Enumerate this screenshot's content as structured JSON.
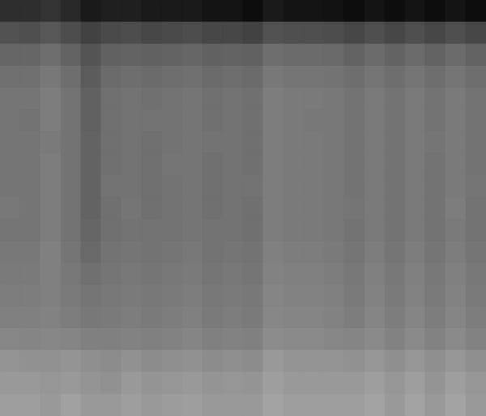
{
  "chart_data": {
    "type": "heatmap",
    "tick_labels": false,
    "zlim": [
      0,
      1
    ],
    "cells": [
      [
        0.18,
        0.18,
        0.2,
        0.16,
        0.1,
        0.12,
        0.12,
        0.1,
        0.1,
        0.1,
        0.08,
        0.08,
        0.05,
        0.1,
        0.08,
        0.08,
        0.07,
        0.05,
        0.08,
        0.05,
        0.08,
        0.05,
        0.08,
        0.05
      ],
      [
        0.32,
        0.31,
        0.34,
        0.3,
        0.26,
        0.29,
        0.3,
        0.28,
        0.29,
        0.3,
        0.28,
        0.28,
        0.26,
        0.32,
        0.31,
        0.31,
        0.3,
        0.28,
        0.31,
        0.28,
        0.31,
        0.28,
        0.31,
        0.28
      ],
      [
        0.4,
        0.4,
        0.43,
        0.39,
        0.33,
        0.38,
        0.39,
        0.38,
        0.39,
        0.4,
        0.38,
        0.39,
        0.38,
        0.43,
        0.42,
        0.42,
        0.41,
        0.39,
        0.42,
        0.39,
        0.42,
        0.39,
        0.42,
        0.39
      ],
      [
        0.44,
        0.44,
        0.47,
        0.43,
        0.36,
        0.42,
        0.43,
        0.42,
        0.43,
        0.44,
        0.42,
        0.43,
        0.42,
        0.47,
        0.46,
        0.46,
        0.45,
        0.43,
        0.46,
        0.43,
        0.46,
        0.43,
        0.46,
        0.43
      ],
      [
        0.46,
        0.46,
        0.49,
        0.45,
        0.38,
        0.44,
        0.45,
        0.44,
        0.45,
        0.46,
        0.44,
        0.45,
        0.44,
        0.49,
        0.48,
        0.48,
        0.47,
        0.45,
        0.48,
        0.45,
        0.48,
        0.45,
        0.48,
        0.45
      ],
      [
        0.46,
        0.45,
        0.49,
        0.45,
        0.38,
        0.44,
        0.45,
        0.45,
        0.45,
        0.46,
        0.44,
        0.45,
        0.44,
        0.49,
        0.48,
        0.47,
        0.47,
        0.45,
        0.48,
        0.45,
        0.48,
        0.45,
        0.48,
        0.45
      ],
      [
        0.46,
        0.46,
        0.48,
        0.45,
        0.39,
        0.44,
        0.45,
        0.44,
        0.45,
        0.46,
        0.45,
        0.45,
        0.44,
        0.49,
        0.48,
        0.48,
        0.47,
        0.45,
        0.48,
        0.45,
        0.48,
        0.46,
        0.48,
        0.45
      ],
      [
        0.46,
        0.46,
        0.49,
        0.45,
        0.39,
        0.44,
        0.45,
        0.44,
        0.46,
        0.46,
        0.44,
        0.45,
        0.44,
        0.49,
        0.48,
        0.48,
        0.47,
        0.45,
        0.48,
        0.45,
        0.48,
        0.45,
        0.48,
        0.45
      ],
      [
        0.46,
        0.46,
        0.49,
        0.45,
        0.39,
        0.45,
        0.45,
        0.44,
        0.45,
        0.46,
        0.44,
        0.45,
        0.45,
        0.49,
        0.48,
        0.48,
        0.47,
        0.45,
        0.48,
        0.45,
        0.48,
        0.45,
        0.48,
        0.46
      ],
      [
        0.47,
        0.46,
        0.49,
        0.45,
        0.39,
        0.44,
        0.46,
        0.44,
        0.45,
        0.46,
        0.44,
        0.45,
        0.44,
        0.49,
        0.48,
        0.48,
        0.47,
        0.46,
        0.48,
        0.45,
        0.48,
        0.45,
        0.49,
        0.45
      ],
      [
        0.46,
        0.46,
        0.49,
        0.45,
        0.4,
        0.44,
        0.45,
        0.45,
        0.45,
        0.46,
        0.45,
        0.45,
        0.44,
        0.49,
        0.48,
        0.48,
        0.47,
        0.45,
        0.48,
        0.45,
        0.48,
        0.45,
        0.48,
        0.45
      ],
      [
        0.47,
        0.47,
        0.5,
        0.46,
        0.41,
        0.45,
        0.46,
        0.45,
        0.46,
        0.47,
        0.45,
        0.46,
        0.45,
        0.5,
        0.49,
        0.49,
        0.48,
        0.46,
        0.49,
        0.46,
        0.49,
        0.46,
        0.49,
        0.46
      ],
      [
        0.48,
        0.48,
        0.5,
        0.47,
        0.44,
        0.46,
        0.47,
        0.46,
        0.47,
        0.48,
        0.46,
        0.47,
        0.46,
        0.51,
        0.5,
        0.5,
        0.49,
        0.47,
        0.5,
        0.47,
        0.5,
        0.47,
        0.5,
        0.47
      ],
      [
        0.49,
        0.49,
        0.5,
        0.48,
        0.46,
        0.47,
        0.48,
        0.47,
        0.48,
        0.49,
        0.47,
        0.48,
        0.47,
        0.52,
        0.51,
        0.51,
        0.5,
        0.48,
        0.51,
        0.48,
        0.51,
        0.48,
        0.51,
        0.48
      ],
      [
        0.5,
        0.5,
        0.51,
        0.49,
        0.47,
        0.48,
        0.49,
        0.48,
        0.49,
        0.5,
        0.48,
        0.49,
        0.48,
        0.53,
        0.52,
        0.52,
        0.51,
        0.49,
        0.52,
        0.49,
        0.52,
        0.49,
        0.52,
        0.49
      ],
      [
        0.53,
        0.52,
        0.53,
        0.52,
        0.5,
        0.5,
        0.51,
        0.5,
        0.51,
        0.52,
        0.5,
        0.51,
        0.5,
        0.55,
        0.54,
        0.54,
        0.53,
        0.52,
        0.54,
        0.51,
        0.54,
        0.51,
        0.54,
        0.51
      ],
      [
        0.58,
        0.57,
        0.57,
        0.58,
        0.56,
        0.55,
        0.57,
        0.55,
        0.56,
        0.57,
        0.55,
        0.56,
        0.55,
        0.6,
        0.58,
        0.58,
        0.58,
        0.57,
        0.59,
        0.56,
        0.59,
        0.56,
        0.59,
        0.56
      ],
      [
        0.6,
        0.6,
        0.59,
        0.6,
        0.58,
        0.57,
        0.6,
        0.58,
        0.59,
        0.6,
        0.58,
        0.59,
        0.58,
        0.62,
        0.6,
        0.6,
        0.6,
        0.6,
        0.62,
        0.59,
        0.62,
        0.58,
        0.62,
        0.59
      ],
      [
        0.62,
        0.62,
        0.6,
        0.63,
        0.6,
        0.6,
        0.62,
        0.6,
        0.61,
        0.62,
        0.6,
        0.6,
        0.6,
        0.64,
        0.62,
        0.62,
        0.62,
        0.62,
        0.64,
        0.6,
        0.64,
        0.6,
        0.64,
        0.6
      ]
    ]
  }
}
